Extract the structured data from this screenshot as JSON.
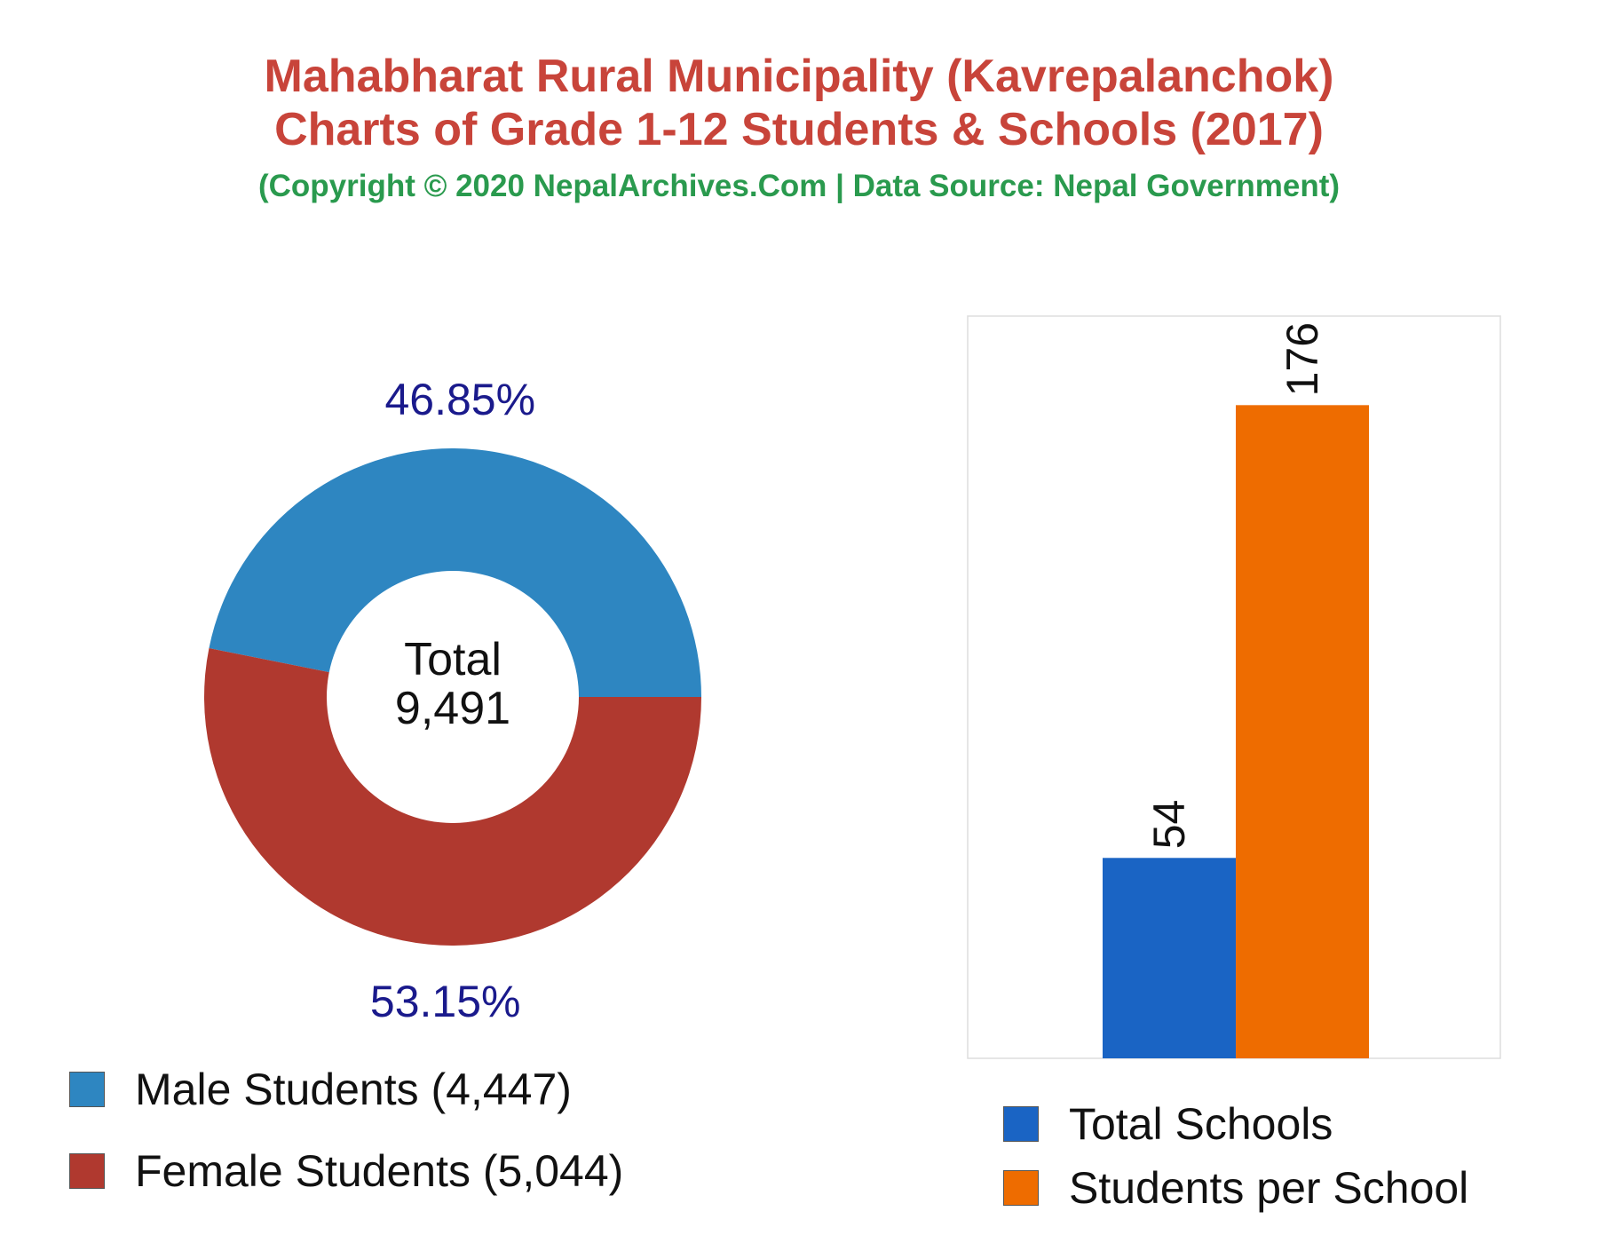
{
  "header": {
    "title_line1": "Mahabharat Rural Municipality (Kavrepalanchok)",
    "title_line2": "Charts of Grade 1-12 Students & Schools (2017)",
    "subtitle": "(Copyright © 2020 NepalArchives.Com | Data Source: Nepal Government)"
  },
  "donut": {
    "center_label": "Total",
    "center_value": "9,491",
    "legend": [
      {
        "label": "Male Students (4,447)",
        "color": "#2e86c1"
      },
      {
        "label": "Female Students (5,044)",
        "color": "#b0392f"
      }
    ]
  },
  "bars": {
    "legend": [
      {
        "label": "Total Schools",
        "color": "#1a64c4"
      },
      {
        "label": "Students per School",
        "color": "#ee6c00"
      }
    ]
  },
  "chart_data": [
    {
      "type": "pie",
      "donut": true,
      "categories": [
        "Male Students",
        "Female Students"
      ],
      "values": [
        4447,
        5044
      ],
      "percent_labels": [
        "46.85%",
        "53.15%"
      ],
      "total": 9491,
      "colors": [
        "#2e86c1",
        "#b0392f"
      ],
      "label_color": "#1a1a8c"
    },
    {
      "type": "bar",
      "categories": [
        "Total Schools",
        "Students per School"
      ],
      "values": [
        54,
        176
      ],
      "value_labels": [
        "54",
        "176"
      ],
      "colors": [
        "#1a64c4",
        "#ee6c00"
      ],
      "ylim": [
        0,
        200
      ],
      "grid": false,
      "legend": "bottom"
    }
  ]
}
